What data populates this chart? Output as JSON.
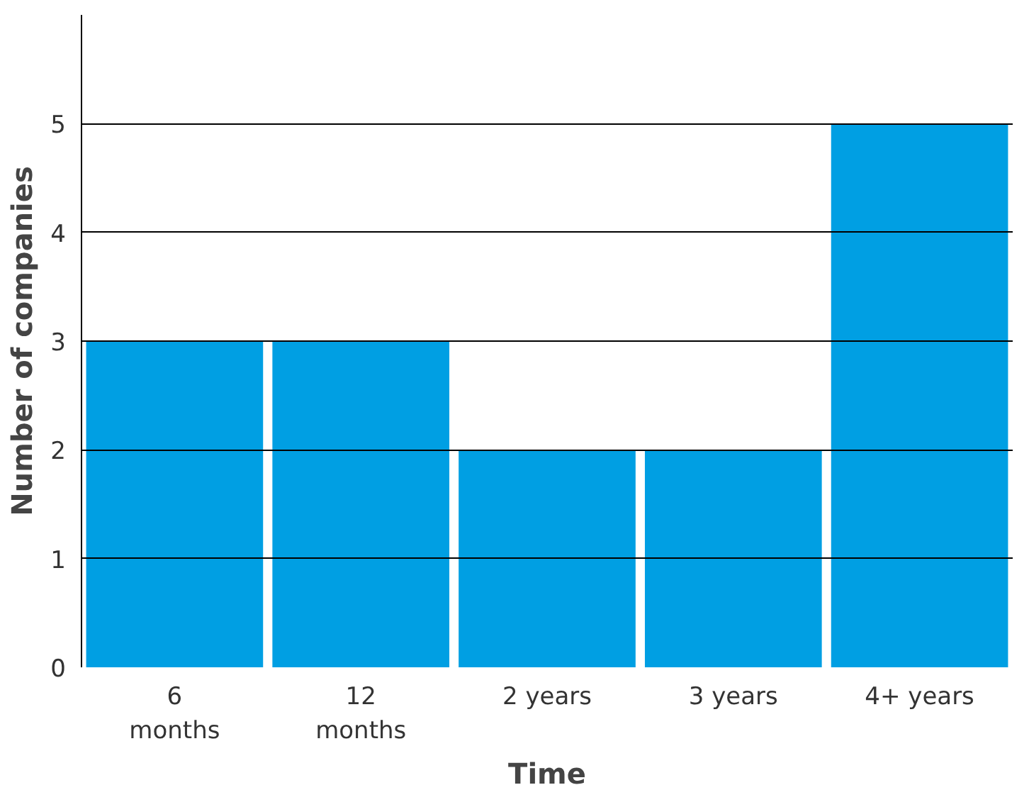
{
  "chart_data": {
    "type": "bar",
    "xlabel": "Time",
    "ylabel": "Number of companies",
    "categories": [
      "6\nmonths",
      "12\nmonths",
      "2 years",
      "3 years",
      "4+ years"
    ],
    "values": [
      3,
      3,
      2,
      2,
      5
    ],
    "color": "#009fe3",
    "ylim": [
      0,
      6
    ],
    "yticks": [
      0,
      1,
      2,
      3,
      4,
      5
    ],
    "grid": "y"
  }
}
